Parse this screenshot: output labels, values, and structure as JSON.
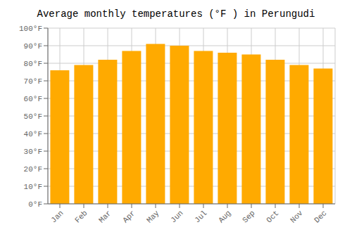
{
  "chart_data": {
    "type": "bar",
    "title": "Average monthly temperatures (°F ) in Perungudi",
    "categories": [
      "Jan",
      "Feb",
      "Mar",
      "Apr",
      "May",
      "Jun",
      "Jul",
      "Aug",
      "Sep",
      "Oct",
      "Nov",
      "Dec"
    ],
    "values": [
      76,
      79,
      82,
      87,
      91,
      90,
      87,
      86,
      85,
      82,
      79,
      77
    ],
    "color": "#FFAA00",
    "ylim": [
      0,
      100
    ],
    "yticks": [
      {
        "value": 0,
        "label": "0°F"
      },
      {
        "value": 10,
        "label": "10°F"
      },
      {
        "value": 20,
        "label": "20°F"
      },
      {
        "value": 30,
        "label": "30°F"
      },
      {
        "value": 40,
        "label": "40°F"
      },
      {
        "value": 50,
        "label": "50°F"
      },
      {
        "value": 60,
        "label": "60°F"
      },
      {
        "value": 70,
        "label": "70°F"
      },
      {
        "value": 80,
        "label": "80°F"
      },
      {
        "value": 90,
        "label": "90°F"
      },
      {
        "value": 100,
        "label": "100°F"
      }
    ],
    "grid": true
  }
}
